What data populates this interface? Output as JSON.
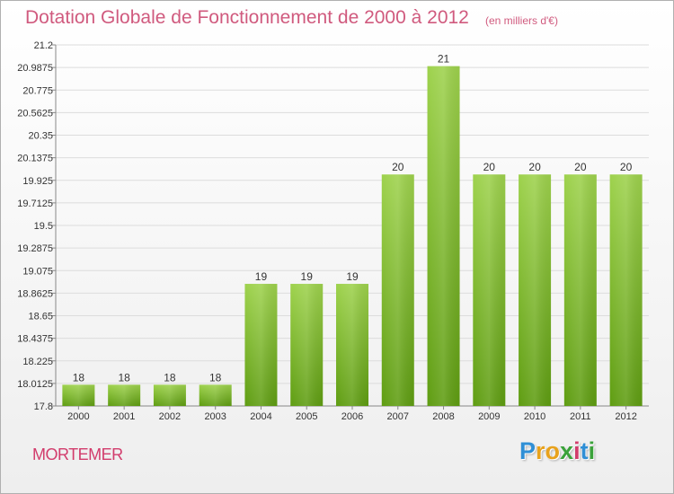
{
  "header": {
    "title": "Dotation Globale de Fonctionnement de 2000 à 2012",
    "subtitle": "(en milliers d'€)"
  },
  "footer": {
    "commune": "MORTEMER",
    "logo_letters": [
      "P",
      "r",
      "o",
      "x",
      "i",
      "t",
      "i"
    ],
    "logo_colors": [
      "#2f8fd6",
      "#e8a21c",
      "#e8a21c",
      "#3aa23a",
      "#d23c6c",
      "#2f8fd6",
      "#3aa23a"
    ]
  },
  "chart_data": {
    "type": "bar",
    "title": "Dotation Globale de Fonctionnement de 2000 à 2012",
    "subtitle": "(en milliers d'€)",
    "categories": [
      "2000",
      "2001",
      "2002",
      "2003",
      "2004",
      "2005",
      "2006",
      "2007",
      "2008",
      "2009",
      "2010",
      "2011",
      "2012"
    ],
    "values": [
      18,
      18,
      18,
      18,
      19,
      19,
      19,
      20,
      21,
      20,
      20,
      20,
      20
    ],
    "bar_heights_axis_units": [
      18.0,
      18.0,
      18.0,
      18.0,
      18.95,
      18.95,
      18.95,
      19.98,
      21.0,
      19.98,
      19.98,
      19.98,
      19.98
    ],
    "value_labels": [
      "18",
      "18",
      "18",
      "18",
      "19",
      "19",
      "19",
      "20",
      "21",
      "20",
      "20",
      "20",
      "20"
    ],
    "ylim": [
      17.8,
      21.2
    ],
    "yticks": [
      "17.8",
      "18.0125",
      "18.225",
      "18.4375",
      "18.65",
      "18.8625",
      "19.075",
      "19.2875",
      "19.5",
      "19.7125",
      "19.925",
      "20.1375",
      "20.35",
      "20.5625",
      "20.775",
      "20.9875",
      "21.2"
    ],
    "grid": true,
    "bar_color": "#8cc63f",
    "bar_color_dark": "#5c9a10"
  }
}
